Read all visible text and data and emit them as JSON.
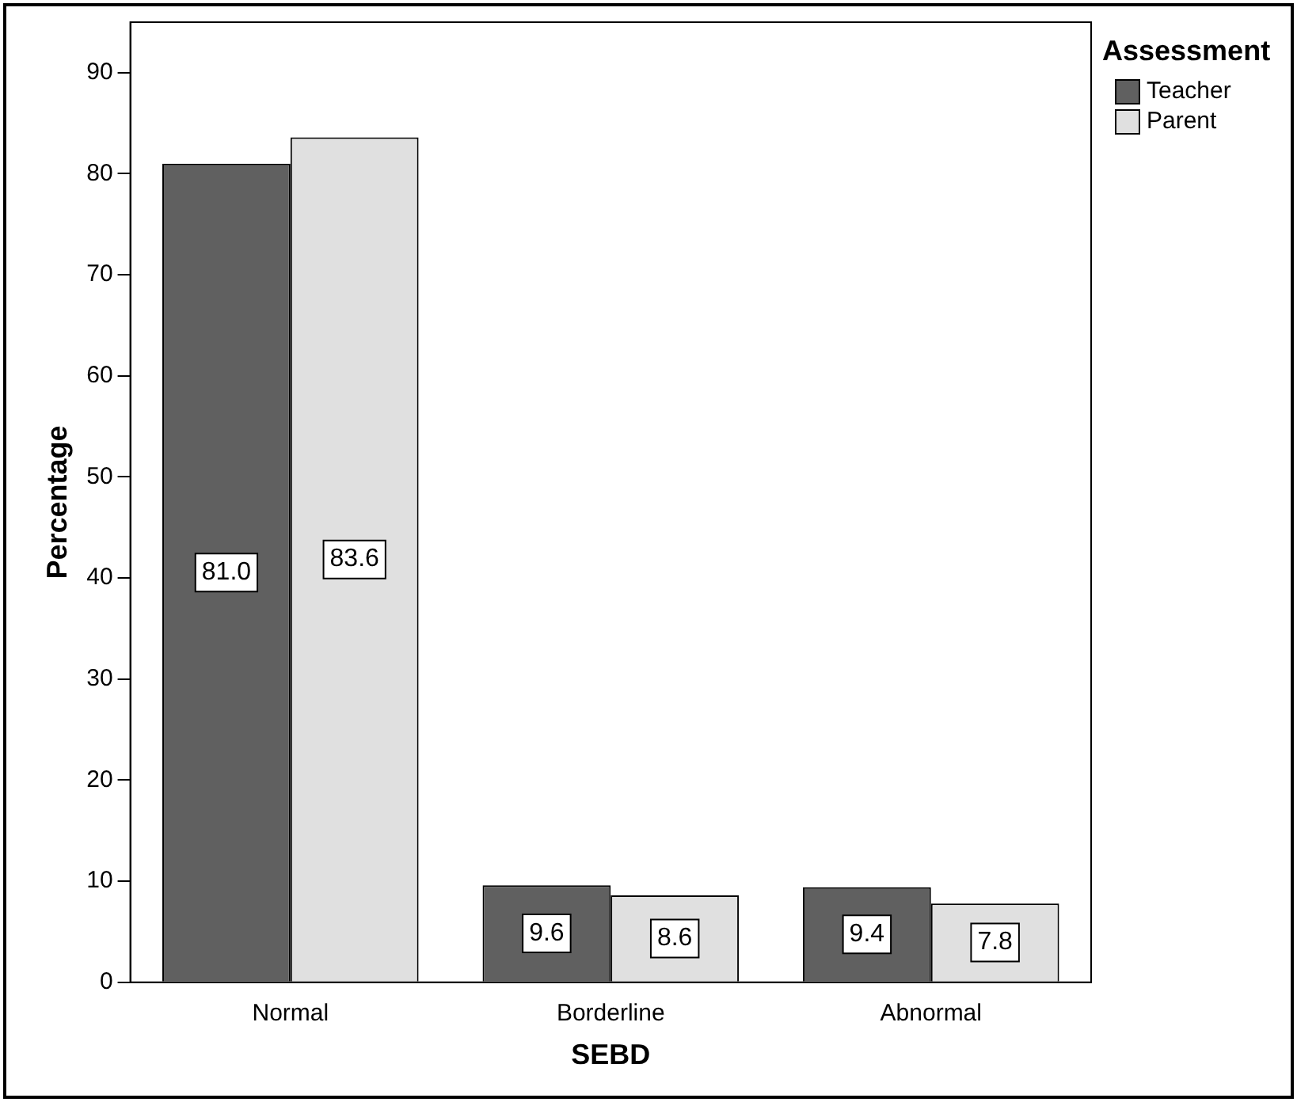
{
  "chart_data": {
    "type": "bar",
    "xlabel": "SEBD",
    "ylabel": "Percentage",
    "legend_title": "Assessment",
    "categories": [
      "Normal",
      "Borderline",
      "Abnormal"
    ],
    "series": [
      {
        "name": "Teacher",
        "color": "#606060",
        "values": [
          81.0,
          9.6,
          9.4
        ],
        "value_labels": [
          "81.0",
          "9.6",
          "9.4"
        ]
      },
      {
        "name": "Parent",
        "color": "#e0e0e0",
        "values": [
          83.6,
          8.6,
          7.8
        ],
        "value_labels": [
          "83.6",
          "8.6",
          "7.8"
        ]
      }
    ],
    "ylim": [
      0,
      95
    ],
    "yticks": [
      0,
      10,
      20,
      30,
      40,
      50,
      60,
      70,
      80,
      90
    ],
    "grid": false,
    "legend": "top right"
  }
}
